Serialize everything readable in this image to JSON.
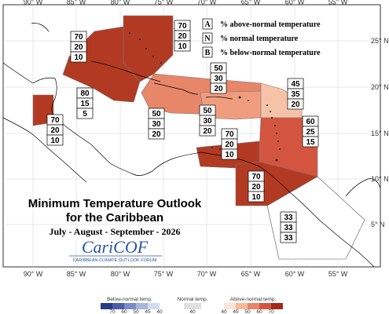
{
  "map": {
    "title_line1": "Minimum Temperature Outlook",
    "title_line2": "for the Caribbean",
    "period": "July - August - September - 2026",
    "logo_text": "CariCOF",
    "logo_subtext": "CARIBBEAN CLIMATE OUTLOOK FORUM",
    "legend": [
      {
        "key": "A",
        "text": "% above-normal temperature"
      },
      {
        "key": "N",
        "text": "% normal temperature"
      },
      {
        "key": "B",
        "text": "% below-normal temperature"
      }
    ],
    "lon_ticks": [
      "90° W",
      "85° W",
      "80° W",
      "75° W",
      "70° W",
      "65° W",
      "60° W",
      "55° W"
    ],
    "lat_ticks": [
      "25° N",
      "20° N",
      "15° N",
      "10° N",
      "5° N"
    ],
    "colorbar": {
      "below_label": "Below-normal temp.",
      "normal_label": "Normal temp.",
      "above_label": "Above-normal temp.",
      "below_ticks": [
        "70",
        "60",
        "50",
        "45",
        "40"
      ],
      "normal_ticks": [
        "40"
      ],
      "above_ticks": [
        "40",
        "45",
        "50",
        "60",
        "70"
      ],
      "below_colors": [
        "#2b3a85",
        "#4a5ea8",
        "#7a8cc6",
        "#a9b6dc",
        "#d5dbee"
      ],
      "normal_color": "#e0e0e0",
      "above_colors": [
        "#fbe3d6",
        "#f5b99a",
        "#e8866a",
        "#d4553f",
        "#a52a1c"
      ]
    },
    "zones": [
      {
        "id": "bahamas-east",
        "probs": [
          "70",
          "20",
          "10"
        ],
        "color": "#b33a22"
      },
      {
        "id": "bahamas-west",
        "probs": [
          "70",
          "20",
          "10"
        ],
        "color": "#b33a22"
      },
      {
        "id": "belize",
        "probs": [
          "70",
          "20",
          "10"
        ],
        "color": "#b33a22"
      },
      {
        "id": "cayman",
        "probs": [
          "80",
          "15",
          "5"
        ],
        "color": "#a82b1a"
      },
      {
        "id": "hispaniola-band",
        "probs": [
          "50",
          "30",
          "20"
        ],
        "color": "#e8866a"
      },
      {
        "id": "greater-antilles",
        "probs": [
          "50",
          "30",
          "20"
        ],
        "color": "#e8866a"
      },
      {
        "id": "puerto-rico",
        "probs": [
          "50",
          "30",
          "20"
        ],
        "color": "#e8866a"
      },
      {
        "id": "leeward",
        "probs": [
          "45",
          "35",
          "20"
        ],
        "color": "#f5b99a"
      },
      {
        "id": "windward",
        "probs": [
          "60",
          "25",
          "15"
        ],
        "color": "#d4553f"
      },
      {
        "id": "abc-islands",
        "probs": [
          "70",
          "20",
          "10"
        ],
        "color": "#b33a22"
      },
      {
        "id": "trinidad-guyana",
        "probs": [
          "70",
          "20",
          "10"
        ],
        "color": "#b33a22"
      },
      {
        "id": "guianas",
        "probs": [
          "33",
          "33",
          "33"
        ],
        "color": "#ffffff"
      }
    ]
  }
}
